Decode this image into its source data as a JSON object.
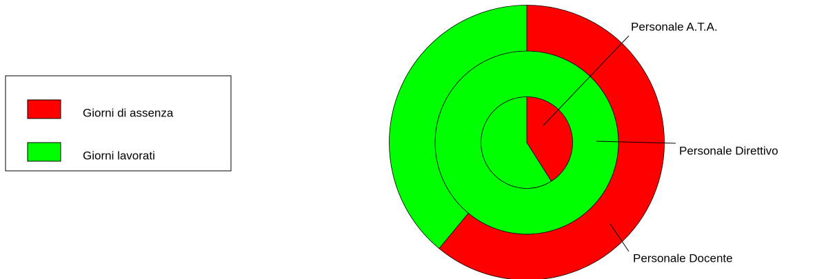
{
  "chart_data": {
    "type": "ring",
    "categories": [
      "Personale A.T.A.",
      "Personale Direttivo",
      "Personale Docente"
    ],
    "series": [
      {
        "name": "Giorni di assenza",
        "color": "#ff0000",
        "values": [
          41,
          0,
          61
        ]
      },
      {
        "name": "Giorni lavorati",
        "color": "#00ff00",
        "values": [
          59,
          100,
          39
        ]
      }
    ],
    "legend": "left"
  }
}
